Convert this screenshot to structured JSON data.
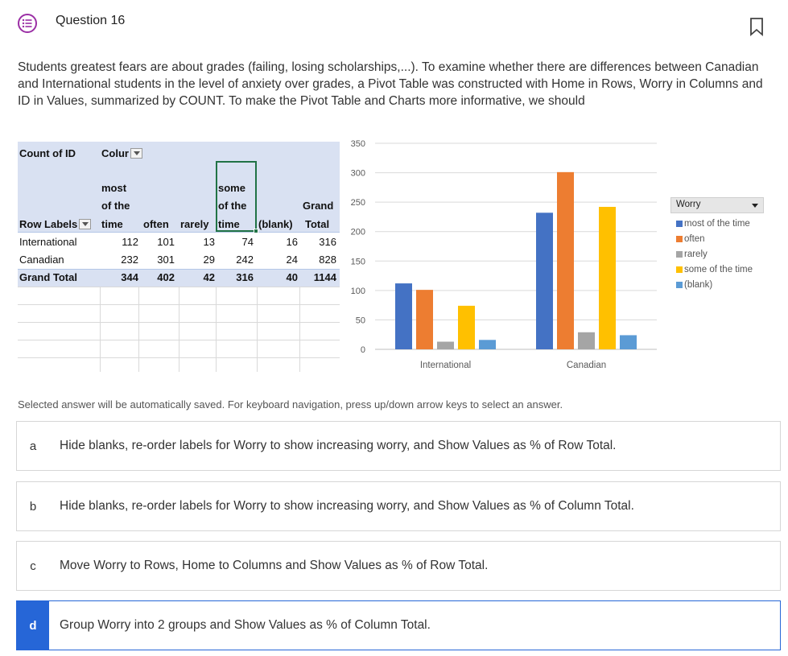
{
  "header": {
    "question_title": "Question 16",
    "icon": "list-bubble-icon",
    "bookmark_icon": "bookmark-icon",
    "accent_color": "#9b2fa5"
  },
  "question": {
    "text": "Students greatest fears are about grades (failing, losing scholarships,...).  To examine whether there are differences between Canadian and International students in the level of anxiety over grades, a Pivot Table was constructed with Home in Rows, Worry in Columns and ID in Values, summarized by COUNT.  To make the Pivot Table and Charts more informative, we should"
  },
  "pivot": {
    "value_label": "Count of ID",
    "col_labels_header": "Colur",
    "row_labels_header": "Row Labels",
    "col_headers": [
      {
        "line1": "most",
        "line2": "of the",
        "line3": "time"
      },
      {
        "line1": "",
        "line2": "",
        "line3": "often"
      },
      {
        "line1": "",
        "line2": "",
        "line3": "rarely"
      },
      {
        "line1": "some",
        "line2": "of the",
        "line3": "time"
      },
      {
        "line1": "",
        "line2": "",
        "line3": "(blank)"
      },
      {
        "line1": "",
        "line2": "Grand",
        "line3": "Total"
      }
    ],
    "rows": [
      {
        "label": "International",
        "values": [
          "112",
          "101",
          "13",
          "74",
          "16",
          "316"
        ]
      },
      {
        "label": "Canadian",
        "values": [
          "232",
          "301",
          "29",
          "242",
          "24",
          "828"
        ]
      },
      {
        "label": "Grand Total",
        "values": [
          "344",
          "402",
          "42",
          "316",
          "40",
          "1144"
        ]
      }
    ]
  },
  "chart_data": {
    "type": "bar",
    "title": "",
    "xlabel": "",
    "ylabel": "",
    "ylim": [
      0,
      350
    ],
    "yticks": [
      "0",
      "50",
      "100",
      "150",
      "200",
      "250",
      "300",
      "350"
    ],
    "categories": [
      "International",
      "Canadian"
    ],
    "legend_title": "Worry",
    "legend_position": "right",
    "grid": true,
    "series": [
      {
        "name": "most of the time",
        "values": [
          112,
          232
        ],
        "color": "#4472c4"
      },
      {
        "name": "often",
        "values": [
          101,
          301
        ],
        "color": "#ed7d31"
      },
      {
        "name": "rarely",
        "values": [
          13,
          29
        ],
        "color": "#a5a5a5"
      },
      {
        "name": "some of the time",
        "values": [
          74,
          242
        ],
        "color": "#ffc000"
      },
      {
        "name": "(blank)",
        "values": [
          16,
          24
        ],
        "color": "#5b9bd5"
      }
    ]
  },
  "hint": "Selected answer will be automatically saved. For keyboard navigation, press up/down arrow keys to select an answer.",
  "answers": [
    {
      "letter": "a",
      "text": "Hide blanks, re-order labels for Worry to show increasing worry, and Show Values as % of Row Total."
    },
    {
      "letter": "b",
      "text": "Hide blanks, re-order labels for Worry to show increasing worry, and Show Values as % of Column Total."
    },
    {
      "letter": "c",
      "text": "Move Worry to Rows, Home to Columns and Show Values as % of Row Total."
    },
    {
      "letter": "d",
      "text": "Group Worry into 2 groups and Show Values as % of Column Total."
    }
  ],
  "selected_answer": "d",
  "selected_color": "#2666d7"
}
